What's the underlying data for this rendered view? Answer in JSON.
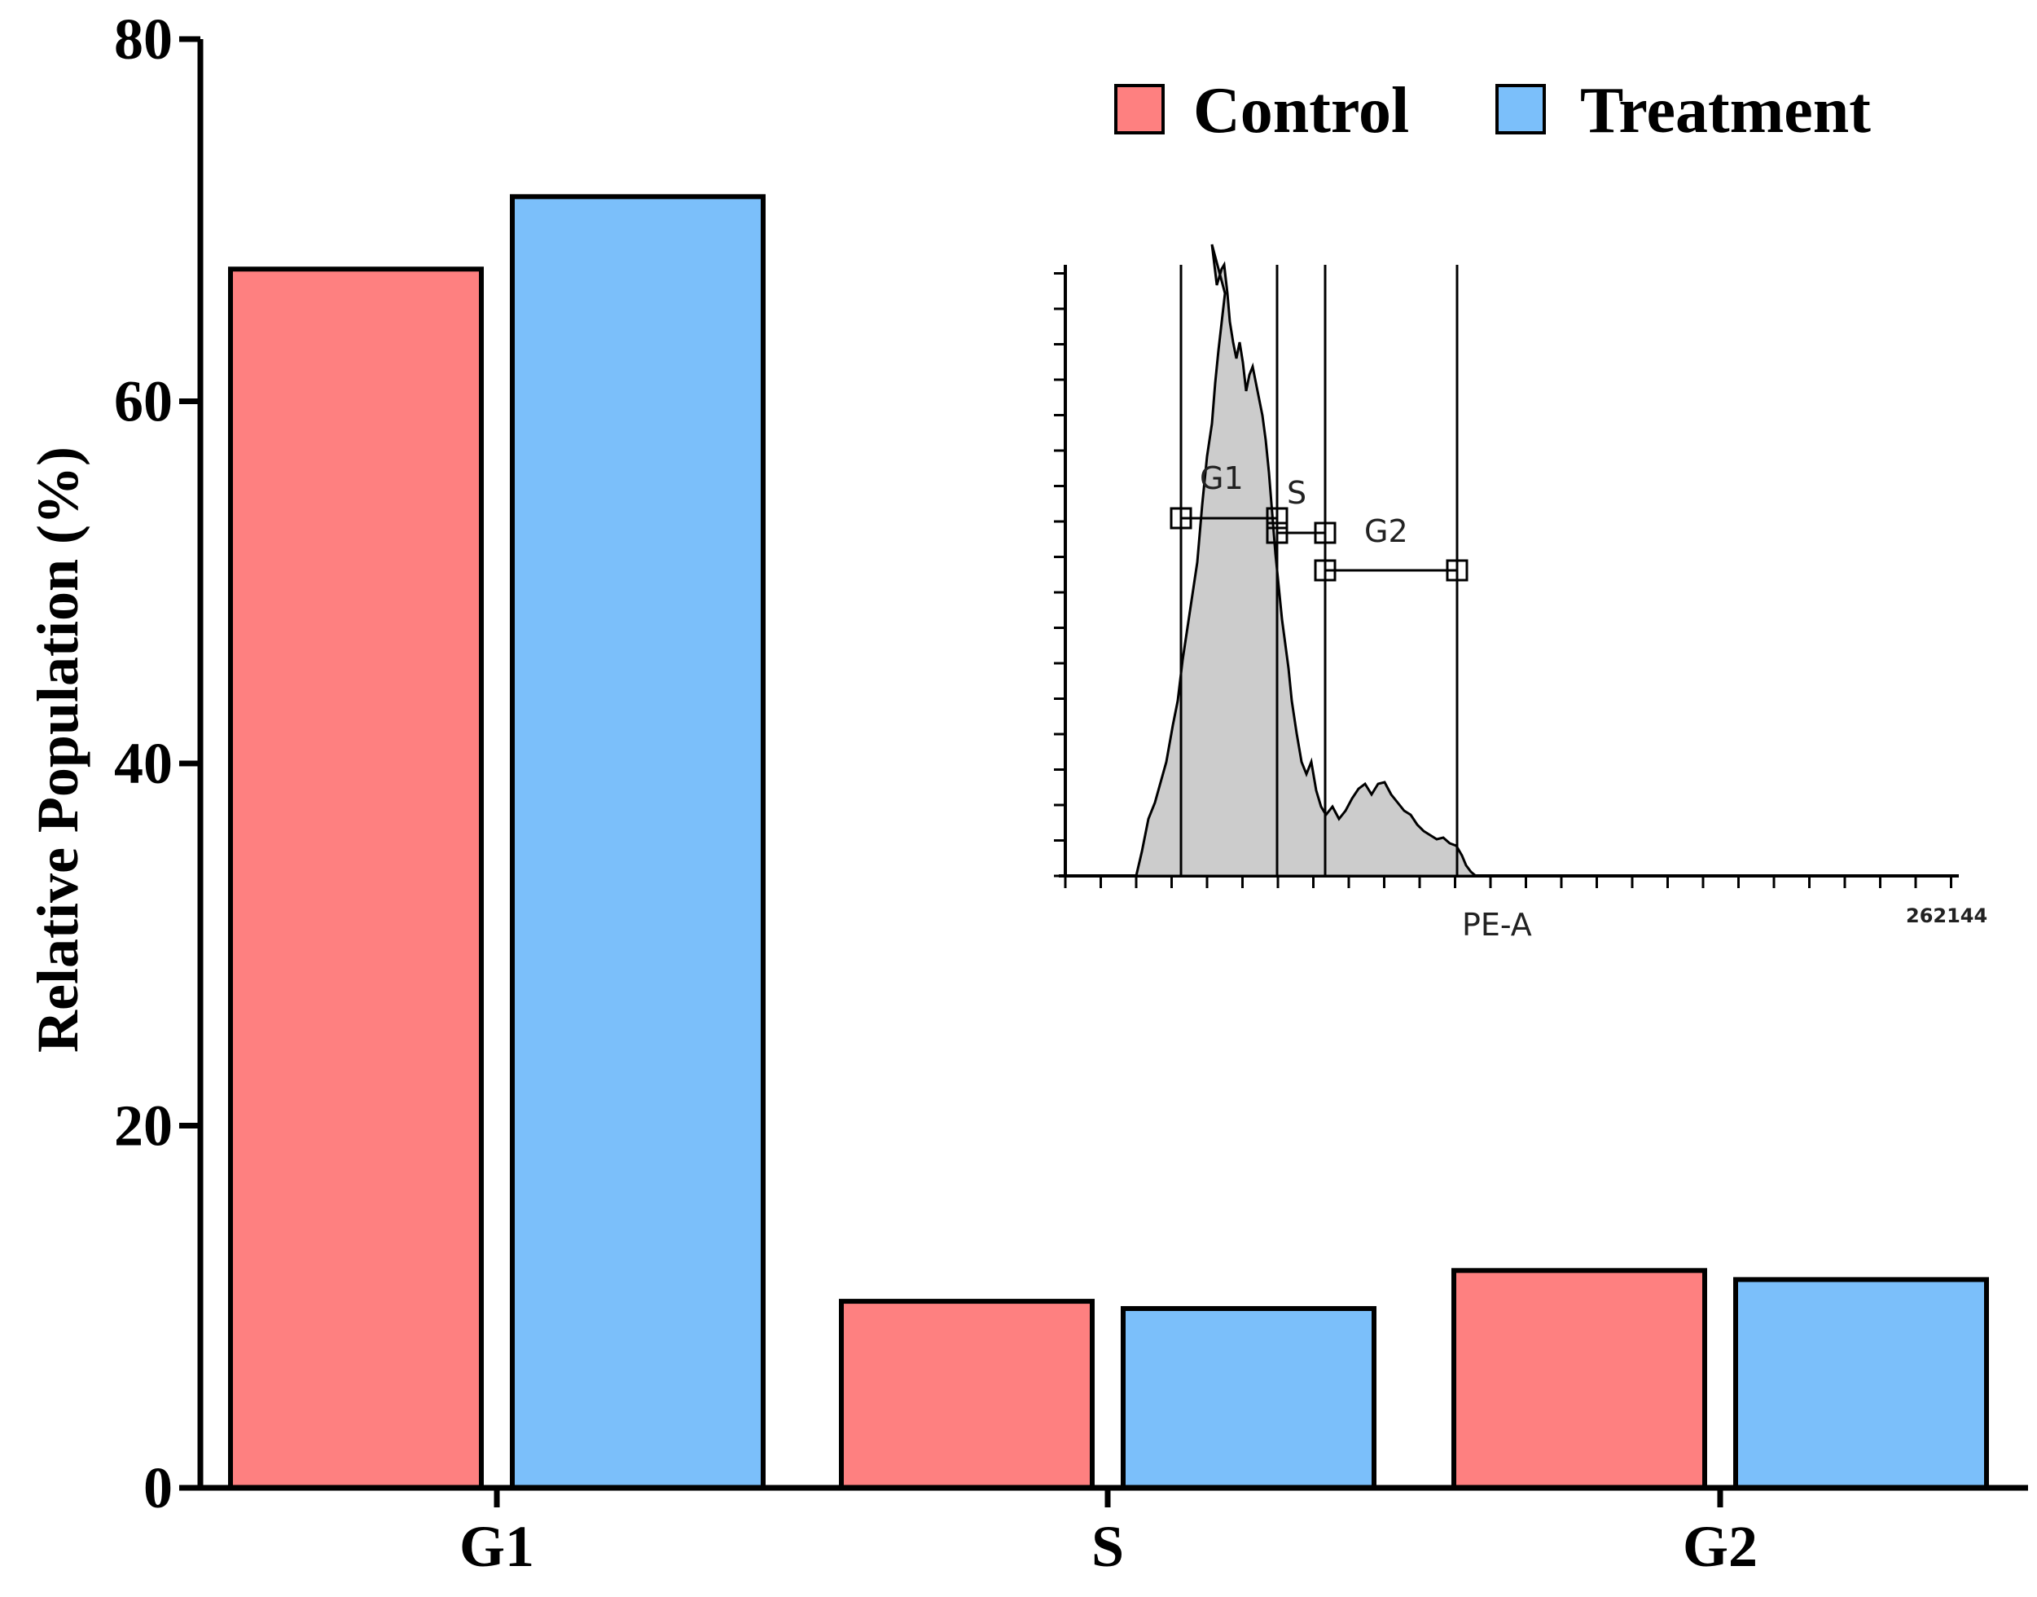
{
  "chart_data": {
    "type": "bar",
    "title": "",
    "xlabel": "",
    "ylabel": "Relative Population (%)",
    "ylim": [
      0,
      80
    ],
    "yticks": [
      "0",
      "20",
      "40",
      "60",
      "80"
    ],
    "categories": [
      "G1",
      "S",
      "G2"
    ],
    "series": [
      {
        "name": "Control",
        "color": "#fe8080",
        "values": [
          67.3,
          10.3,
          12.0
        ]
      },
      {
        "name": "Treatment",
        "color": "#7bbffa",
        "values": [
          71.3,
          9.9,
          11.5
        ]
      }
    ],
    "legend": "top-right",
    "inset": {
      "type": "histogram",
      "xlabel": "PE-A",
      "xmax_label": "262144",
      "gates": [
        {
          "label": "G1"
        },
        {
          "label": "S"
        },
        {
          "label": "G2"
        }
      ]
    }
  },
  "colors": {
    "control": "#fe8080",
    "treatment": "#7bbffa",
    "histogram_fill": "#cccccc"
  }
}
